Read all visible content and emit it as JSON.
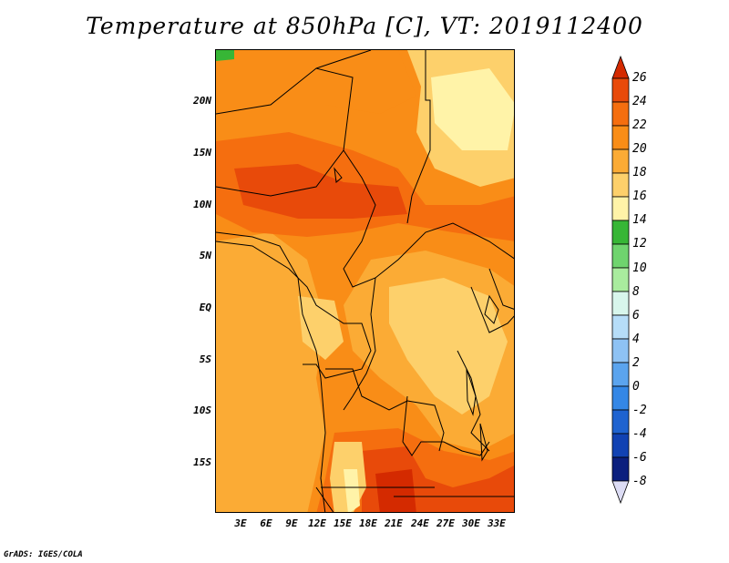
{
  "title": "Temperature at 850hPa [C], VT: 2019112400",
  "lat_labels": [
    "20N",
    "15N",
    "10N",
    "5N",
    "EQ",
    "5S",
    "10S",
    "15S"
  ],
  "lon_labels": [
    "3E",
    "6E",
    "9E",
    "12E",
    "15E",
    "18E",
    "21E",
    "24E",
    "27E",
    "30E",
    "33E"
  ],
  "colorbar": {
    "labels": [
      "26",
      "24",
      "22",
      "20",
      "18",
      "16",
      "14",
      "12",
      "10",
      "8",
      "6",
      "4",
      "2",
      "0",
      "-2",
      "-4",
      "-6",
      "-8"
    ],
    "colors": [
      "#d42a00",
      "#e84a0a",
      "#f56e0f",
      "#f98d17",
      "#fbab35",
      "#fdd06b",
      "#fff3a8",
      "#37b636",
      "#6fd46e",
      "#a9ec9e",
      "#d8f6ec",
      "#b6ddf8",
      "#8ec2f4",
      "#5ba4ee",
      "#3487e6",
      "#1f63d0",
      "#1142b3",
      "#0b1f7e",
      "#dcdcf4"
    ]
  },
  "credit": "GrADS: IGES/COLA"
}
